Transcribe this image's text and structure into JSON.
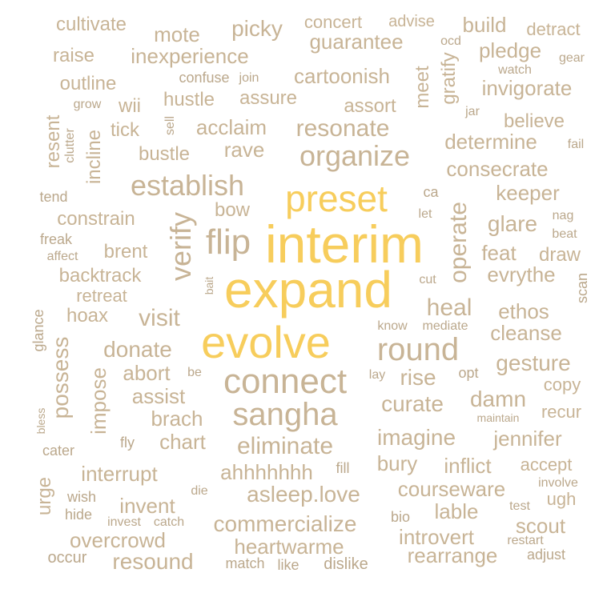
{
  "colors": {
    "background": "#ffffff",
    "highlight": "#f7cd5c",
    "primary": "#c8b496",
    "secondary": "#bba88c"
  },
  "words": [
    "interim",
    "expand",
    "evolve",
    "preset",
    "connect",
    "sangha",
    "round",
    "flip",
    "verify",
    "establish",
    "organize",
    "eliminate",
    "imagine",
    "resonate",
    "determine",
    "heal",
    "ethos",
    "cleanse",
    "donate",
    "visit",
    "rise",
    "gesture",
    "curate",
    "damn",
    "jennifer",
    "inflict",
    "bury",
    "chart",
    "brach",
    "assist",
    "abort",
    "possess",
    "impose",
    "interrupt",
    "ahhhhhhh",
    "asleep.love",
    "commercialize",
    "heartwarme",
    "courseware",
    "introvert",
    "rearrange",
    "scout",
    "lable",
    "invent",
    "overcrowd",
    "resound",
    "urge",
    "accept",
    "ugh",
    "copy",
    "recur",
    "operate",
    "evrythe",
    "feat",
    "draw",
    "glare",
    "keeper",
    "consecrate",
    "believe",
    "invigorate",
    "pledge",
    "build",
    "detract",
    "advise",
    "concert",
    "picky",
    "mote",
    "cultivate",
    "raise",
    "inexperience",
    "guarantee",
    "cartoonish",
    "outline",
    "hustle",
    "assure",
    "assort",
    "acclaim",
    "rave",
    "tick",
    "bustle",
    "resent",
    "incline",
    "constrain",
    "bow",
    "brent",
    "backtrack",
    "retreat",
    "hoax",
    "glance",
    "meet",
    "gratify",
    "scan",
    "freak",
    "affect",
    "clutter",
    "tend",
    "grow",
    "wii",
    "confuse",
    "join",
    "sell",
    "jar",
    "fail",
    "nag",
    "beat",
    "ca",
    "let",
    "cut",
    "know",
    "mediate",
    "lay",
    "opt",
    "be",
    "maintain",
    "bless",
    "cater",
    "fly",
    "fill",
    "wish",
    "hide",
    "die",
    "invest",
    "catch",
    "occur",
    "match",
    "like",
    "dislike",
    "bio",
    "test",
    "restart",
    "adjust",
    "involve",
    "gear",
    "watch",
    "ocd",
    "bait"
  ]
}
